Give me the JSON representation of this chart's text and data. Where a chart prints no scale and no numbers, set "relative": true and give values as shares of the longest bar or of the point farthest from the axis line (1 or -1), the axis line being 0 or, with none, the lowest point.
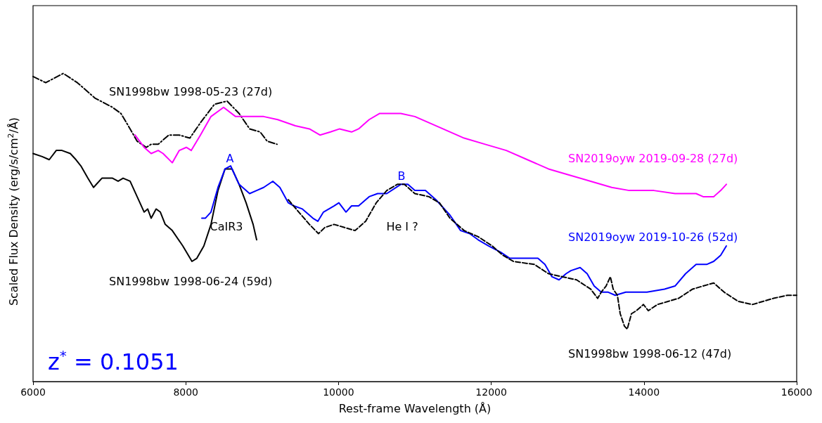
{
  "chart_data": {
    "type": "line",
    "relative": true,
    "xlabel": "Rest-frame Wavelength (Å)",
    "ylabel": "Scaled Flux Density (erg/s/cm$^{2}$/Å)",
    "xlim": [
      6000,
      16000
    ],
    "xticks": [
      6000,
      8000,
      10000,
      12000,
      14000,
      16000
    ],
    "grid": false,
    "legend": false,
    "marker": "none",
    "series": [
      {
        "name": "SN1998bw 1998-05-23 (27d)",
        "color": "#000000",
        "line_style": "dashdot",
        "x": [
          6000,
          6166,
          6396,
          6580,
          6810,
          7040,
          7151,
          7271,
          7363,
          7483,
          7547,
          7639,
          7777,
          7915,
          8053,
          8192,
          8376,
          8541,
          8698,
          8836,
          8974,
          9066,
          9195
        ],
        "values": [
          0.99,
          0.97,
          1.0,
          0.97,
          0.92,
          0.89,
          0.87,
          0.82,
          0.78,
          0.76,
          0.77,
          0.77,
          0.8,
          0.8,
          0.79,
          0.84,
          0.9,
          0.91,
          0.87,
          0.82,
          0.81,
          0.78,
          0.77
        ]
      },
      {
        "name": "SN2019oyw 2019-09-28 (27d)",
        "color": "#ff00ff",
        "line_style": "solid",
        "x": [
          7335,
          7455,
          7547,
          7639,
          7703,
          7823,
          7915,
          8007,
          8072,
          8192,
          8330,
          8495,
          8652,
          8882,
          9020,
          9204,
          9435,
          9619,
          9757,
          9895,
          10015,
          10171,
          10263,
          10401,
          10540,
          10816,
          11000,
          11184,
          11368,
          11645,
          11921,
          12197,
          12473,
          12750,
          13026,
          13302,
          13578,
          13808,
          14130,
          14407,
          14683,
          14775,
          14913,
          15005,
          15079
        ],
        "values": [
          0.8,
          0.76,
          0.74,
          0.75,
          0.74,
          0.71,
          0.75,
          0.76,
          0.75,
          0.8,
          0.86,
          0.89,
          0.86,
          0.86,
          0.86,
          0.85,
          0.83,
          0.82,
          0.8,
          0.81,
          0.82,
          0.81,
          0.82,
          0.85,
          0.87,
          0.87,
          0.86,
          0.84,
          0.82,
          0.79,
          0.77,
          0.75,
          0.72,
          0.69,
          0.67,
          0.65,
          0.63,
          0.62,
          0.62,
          0.61,
          0.61,
          0.6,
          0.6,
          0.62,
          0.64
        ]
      },
      {
        "name": "SN1998bw 1998-06-24 (59d)",
        "color": "#000000",
        "line_style": "solid",
        "x": [
          6000,
          6120,
          6212,
          6304,
          6378,
          6488,
          6562,
          6626,
          6718,
          6792,
          6902,
          7041,
          7114,
          7179,
          7271,
          7363,
          7455,
          7501,
          7547,
          7611,
          7667,
          7731,
          7823,
          7961,
          8081,
          8145,
          8237,
          8330,
          8422,
          8514,
          8606,
          8698,
          8790,
          8882,
          8928
        ],
        "values": [
          0.74,
          0.73,
          0.72,
          0.75,
          0.75,
          0.74,
          0.72,
          0.7,
          0.66,
          0.63,
          0.66,
          0.66,
          0.65,
          0.66,
          0.65,
          0.6,
          0.55,
          0.56,
          0.53,
          0.56,
          0.55,
          0.51,
          0.49,
          0.44,
          0.39,
          0.4,
          0.44,
          0.51,
          0.62,
          0.69,
          0.69,
          0.64,
          0.58,
          0.51,
          0.46
        ]
      },
      {
        "name": "SN2019oyw 2019-10-26 (52d)",
        "color": "#0000ff",
        "line_style": "solid",
        "x": [
          8210,
          8256,
          8330,
          8422,
          8514,
          8587,
          8698,
          8836,
          8928,
          9020,
          9140,
          9232,
          9343,
          9416,
          9527,
          9665,
          9729,
          9803,
          9941,
          10005,
          10098,
          10171,
          10263,
          10401,
          10512,
          10632,
          10816,
          10908,
          11000,
          11138,
          11276,
          11460,
          11599,
          11718,
          11829,
          11967,
          12123,
          12243,
          12335,
          12427,
          12611,
          12703,
          12796,
          12888,
          12980,
          13044,
          13164,
          13256,
          13348,
          13440,
          13532,
          13624,
          13762,
          14039,
          14269,
          14407,
          14545,
          14683,
          14821,
          14913,
          15005,
          15079
        ],
        "values": [
          0.53,
          0.53,
          0.55,
          0.63,
          0.69,
          0.7,
          0.64,
          0.61,
          0.62,
          0.63,
          0.65,
          0.63,
          0.58,
          0.57,
          0.56,
          0.53,
          0.52,
          0.55,
          0.57,
          0.58,
          0.55,
          0.57,
          0.57,
          0.6,
          0.61,
          0.61,
          0.64,
          0.64,
          0.62,
          0.62,
          0.59,
          0.54,
          0.49,
          0.48,
          0.46,
          0.44,
          0.42,
          0.4,
          0.4,
          0.4,
          0.4,
          0.38,
          0.34,
          0.33,
          0.35,
          0.36,
          0.37,
          0.35,
          0.31,
          0.29,
          0.29,
          0.28,
          0.29,
          0.29,
          0.3,
          0.31,
          0.35,
          0.38,
          0.38,
          0.39,
          0.41,
          0.44
        ]
      },
      {
        "name": "SN1998bw 1998-06-12 (47d)",
        "color": "#000000",
        "line_style": "dashed",
        "x": [
          9343,
          9480,
          9619,
          9738,
          9821,
          9941,
          10079,
          10217,
          10355,
          10494,
          10632,
          10770,
          10862,
          11000,
          11184,
          11322,
          11460,
          11645,
          11829,
          12013,
          12151,
          12289,
          12565,
          12750,
          12934,
          13118,
          13302,
          13394,
          13440,
          13504,
          13560,
          13597,
          13652,
          13689,
          13744,
          13781,
          13836,
          13901,
          13993,
          14057,
          14177,
          14315,
          14453,
          14637,
          14775,
          14913,
          15051,
          15236,
          15420,
          15558,
          15696,
          15880,
          16000
        ],
        "values": [
          0.59,
          0.55,
          0.51,
          0.48,
          0.5,
          0.51,
          0.5,
          0.49,
          0.52,
          0.58,
          0.62,
          0.64,
          0.64,
          0.61,
          0.6,
          0.58,
          0.53,
          0.49,
          0.47,
          0.44,
          0.41,
          0.39,
          0.38,
          0.35,
          0.34,
          0.33,
          0.3,
          0.27,
          0.29,
          0.31,
          0.34,
          0.3,
          0.28,
          0.22,
          0.18,
          0.17,
          0.22,
          0.23,
          0.25,
          0.23,
          0.25,
          0.26,
          0.27,
          0.3,
          0.31,
          0.32,
          0.29,
          0.26,
          0.25,
          0.26,
          0.27,
          0.28,
          0.28
        ]
      }
    ],
    "annotations": [
      "A",
      "B",
      "CaIR3",
      "He I ?",
      "z$^{*}$ = 0.1051"
    ]
  }
}
